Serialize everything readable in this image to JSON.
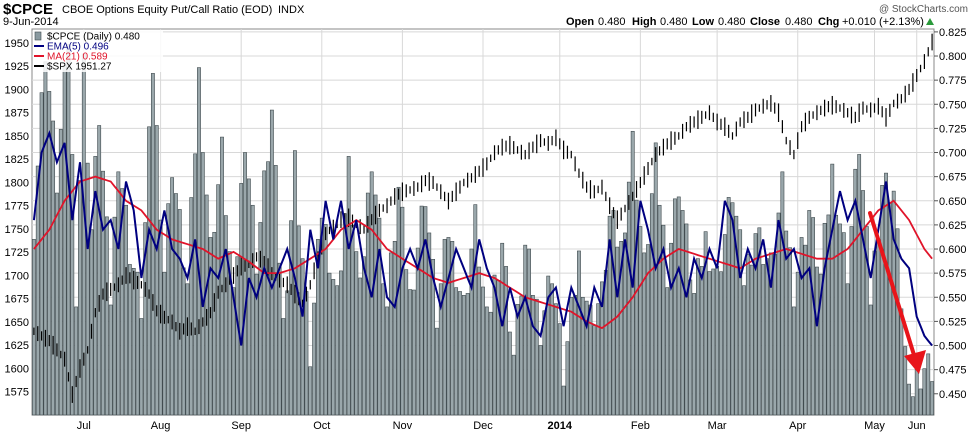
{
  "header": {
    "symbol": "$CPCE",
    "description": "CBOE Options Equity Put/Call Ratio (EOD)",
    "exchange": "INDX",
    "date": "9-Jun-2014",
    "open_label": "Open",
    "open": "0.480",
    "high_label": "High",
    "high": "0.480",
    "low_label": "Low",
    "low": "0.480",
    "close_label": "Close",
    "close": "0.480",
    "chg_label": "Chg",
    "chg": "+0.010 (+2.13%)",
    "watermark": "@ StockCharts.com"
  },
  "legend": [
    {
      "label": "$CPCE (Daily) 0.480",
      "color": "#8a9aa0"
    },
    {
      "label": "EMA(5) 0.496",
      "color": "#000080"
    },
    {
      "label": "MA(21) 0.589",
      "color": "#e0142a"
    },
    {
      "label": "$SPX 1951.27",
      "color": "#000000"
    }
  ],
  "colors": {
    "bars_fill": "#9aa7ab",
    "bars_stroke": "#3f4a4e",
    "ema": "#000080",
    "ma": "#e0142a",
    "spx": "#000000",
    "grid": "#d8d8d8",
    "arrow": "#e8141a"
  },
  "chart_data": {
    "type": "bar",
    "title": "CBOE Options Equity Put/Call Ratio (EOD)",
    "x_tick_labels": [
      "Jul",
      "Aug",
      "Sep",
      "Oct",
      "Nov",
      "Dec",
      "2014",
      "Feb",
      "Mar",
      "Apr",
      "May",
      "Jun"
    ],
    "bold_x_tick": "2014",
    "y_left": {
      "label": "$SPX",
      "min": 1550,
      "max": 1965,
      "ticks": [
        1575,
        1600,
        1625,
        1650,
        1675,
        1700,
        1725,
        1750,
        1775,
        1800,
        1825,
        1850,
        1875,
        1900,
        1925,
        1950
      ]
    },
    "y_right": {
      "label": "$CPCE",
      "min": 0.428,
      "max": 0.828,
      "ticks": [
        0.45,
        0.475,
        0.5,
        0.525,
        0.55,
        0.575,
        0.6,
        0.625,
        0.65,
        0.675,
        0.7,
        0.725,
        0.75,
        0.775,
        0.8,
        0.825
      ]
    },
    "grid": true,
    "legend_position": "top-left",
    "cpce_bar_anchors": [
      [
        0,
        0.63
      ],
      [
        3,
        0.81
      ],
      [
        6,
        0.67
      ],
      [
        9,
        0.82
      ],
      [
        11,
        0.56
      ],
      [
        13,
        0.79
      ],
      [
        15,
        0.62
      ],
      [
        17,
        0.74
      ],
      [
        20,
        0.55
      ],
      [
        22,
        0.7
      ],
      [
        25,
        0.6
      ],
      [
        28,
        0.54
      ],
      [
        31,
        0.79
      ],
      [
        34,
        0.58
      ],
      [
        36,
        0.69
      ],
      [
        40,
        0.56
      ],
      [
        43,
        0.78
      ],
      [
        46,
        0.6
      ],
      [
        49,
        0.7
      ],
      [
        52,
        0.54
      ],
      [
        55,
        0.72
      ],
      [
        58,
        0.59
      ],
      [
        62,
        0.74
      ],
      [
        65,
        0.52
      ],
      [
        68,
        0.69
      ],
      [
        72,
        0.49
      ],
      [
        75,
        0.64
      ],
      [
        79,
        0.55
      ],
      [
        82,
        0.68
      ],
      [
        85,
        0.55
      ],
      [
        88,
        0.7
      ],
      [
        92,
        0.54
      ],
      [
        95,
        0.66
      ],
      [
        98,
        0.55
      ],
      [
        102,
        0.66
      ],
      [
        105,
        0.53
      ],
      [
        108,
        0.62
      ],
      [
        112,
        0.54
      ],
      [
        115,
        0.63
      ],
      [
        118,
        0.52
      ],
      [
        122,
        0.61
      ],
      [
        125,
        0.49
      ],
      [
        128,
        0.6
      ],
      [
        132,
        0.52
      ],
      [
        135,
        0.58
      ],
      [
        138,
        0.47
      ],
      [
        142,
        0.59
      ],
      [
        145,
        0.53
      ],
      [
        148,
        0.55
      ],
      [
        150,
        0.63
      ],
      [
        153,
        0.6
      ],
      [
        156,
        0.71
      ],
      [
        159,
        0.58
      ],
      [
        162,
        0.69
      ],
      [
        165,
        0.58
      ],
      [
        168,
        0.67
      ],
      [
        172,
        0.55
      ],
      [
        175,
        0.61
      ],
      [
        178,
        0.57
      ],
      [
        182,
        0.66
      ],
      [
        185,
        0.57
      ],
      [
        188,
        0.62
      ],
      [
        192,
        0.58
      ],
      [
        195,
        0.66
      ],
      [
        198,
        0.56
      ],
      [
        202,
        0.64
      ],
      [
        205,
        0.57
      ],
      [
        208,
        0.68
      ],
      [
        212,
        0.58
      ],
      [
        215,
        0.71
      ],
      [
        218,
        0.55
      ],
      [
        221,
        0.67
      ],
      [
        224,
        0.66
      ],
      [
        226,
        0.55
      ],
      [
        228,
        0.44
      ],
      [
        230,
        0.47
      ],
      [
        232,
        0.48
      ]
    ],
    "ema5_anchors": [
      [
        0,
        0.63
      ],
      [
        2,
        0.7
      ],
      [
        4,
        0.72
      ],
      [
        6,
        0.69
      ],
      [
        8,
        0.71
      ],
      [
        10,
        0.63
      ],
      [
        12,
        0.69
      ],
      [
        14,
        0.6
      ],
      [
        16,
        0.66
      ],
      [
        18,
        0.62
      ],
      [
        20,
        0.63
      ],
      [
        22,
        0.6
      ],
      [
        24,
        0.67
      ],
      [
        26,
        0.64
      ],
      [
        28,
        0.57
      ],
      [
        30,
        0.62
      ],
      [
        32,
        0.6
      ],
      [
        34,
        0.64
      ],
      [
        36,
        0.6
      ],
      [
        38,
        0.59
      ],
      [
        40,
        0.57
      ],
      [
        42,
        0.61
      ],
      [
        44,
        0.54
      ],
      [
        46,
        0.58
      ],
      [
        48,
        0.57
      ],
      [
        50,
        0.6
      ],
      [
        52,
        0.55
      ],
      [
        54,
        0.5
      ],
      [
        56,
        0.57
      ],
      [
        58,
        0.55
      ],
      [
        60,
        0.58
      ],
      [
        62,
        0.56
      ],
      [
        64,
        0.58
      ],
      [
        66,
        0.6
      ],
      [
        68,
        0.57
      ],
      [
        70,
        0.53
      ],
      [
        72,
        0.62
      ],
      [
        74,
        0.58
      ],
      [
        76,
        0.65
      ],
      [
        78,
        0.61
      ],
      [
        80,
        0.65
      ],
      [
        82,
        0.6
      ],
      [
        84,
        0.63
      ],
      [
        86,
        0.58
      ],
      [
        88,
        0.55
      ],
      [
        90,
        0.6
      ],
      [
        92,
        0.55
      ],
      [
        94,
        0.54
      ],
      [
        96,
        0.58
      ],
      [
        98,
        0.6
      ],
      [
        100,
        0.58
      ],
      [
        102,
        0.61
      ],
      [
        104,
        0.57
      ],
      [
        106,
        0.54
      ],
      [
        108,
        0.57
      ],
      [
        110,
        0.6
      ],
      [
        112,
        0.58
      ],
      [
        114,
        0.56
      ],
      [
        116,
        0.61
      ],
      [
        118,
        0.58
      ],
      [
        120,
        0.56
      ],
      [
        122,
        0.52
      ],
      [
        124,
        0.56
      ],
      [
        126,
        0.53
      ],
      [
        128,
        0.55
      ],
      [
        130,
        0.52
      ],
      [
        132,
        0.51
      ],
      [
        134,
        0.55
      ],
      [
        136,
        0.56
      ],
      [
        138,
        0.52
      ],
      [
        140,
        0.56
      ],
      [
        142,
        0.54
      ],
      [
        144,
        0.52
      ],
      [
        146,
        0.56
      ],
      [
        148,
        0.54
      ],
      [
        150,
        0.61
      ],
      [
        152,
        0.55
      ],
      [
        154,
        0.61
      ],
      [
        156,
        0.56
      ],
      [
        158,
        0.65
      ],
      [
        160,
        0.62
      ],
      [
        162,
        0.58
      ],
      [
        164,
        0.6
      ],
      [
        166,
        0.56
      ],
      [
        168,
        0.58
      ],
      [
        170,
        0.55
      ],
      [
        172,
        0.59
      ],
      [
        174,
        0.57
      ],
      [
        176,
        0.6
      ],
      [
        178,
        0.58
      ],
      [
        180,
        0.65
      ],
      [
        182,
        0.63
      ],
      [
        184,
        0.57
      ],
      [
        186,
        0.6
      ],
      [
        188,
        0.58
      ],
      [
        190,
        0.61
      ],
      [
        192,
        0.56
      ],
      [
        194,
        0.63
      ],
      [
        196,
        0.59
      ],
      [
        198,
        0.6
      ],
      [
        200,
        0.57
      ],
      [
        202,
        0.58
      ],
      [
        204,
        0.52
      ],
      [
        206,
        0.58
      ],
      [
        208,
        0.62
      ],
      [
        210,
        0.66
      ],
      [
        212,
        0.63
      ],
      [
        214,
        0.65
      ],
      [
        216,
        0.61
      ],
      [
        218,
        0.57
      ],
      [
        220,
        0.62
      ],
      [
        222,
        0.67
      ],
      [
        224,
        0.61
      ],
      [
        226,
        0.59
      ],
      [
        228,
        0.58
      ],
      [
        230,
        0.53
      ],
      [
        232,
        0.51
      ],
      [
        234,
        0.5
      ]
    ],
    "ma21_anchors": [
      [
        0,
        0.6
      ],
      [
        4,
        0.62
      ],
      [
        8,
        0.65
      ],
      [
        12,
        0.67
      ],
      [
        16,
        0.675
      ],
      [
        20,
        0.67
      ],
      [
        24,
        0.65
      ],
      [
        28,
        0.64
      ],
      [
        32,
        0.62
      ],
      [
        36,
        0.61
      ],
      [
        40,
        0.605
      ],
      [
        44,
        0.6
      ],
      [
        48,
        0.59
      ],
      [
        52,
        0.597
      ],
      [
        56,
        0.587
      ],
      [
        60,
        0.575
      ],
      [
        64,
        0.575
      ],
      [
        68,
        0.58
      ],
      [
        72,
        0.59
      ],
      [
        76,
        0.6
      ],
      [
        80,
        0.62
      ],
      [
        84,
        0.63
      ],
      [
        88,
        0.62
      ],
      [
        92,
        0.6
      ],
      [
        96,
        0.59
      ],
      [
        100,
        0.58
      ],
      [
        104,
        0.57
      ],
      [
        108,
        0.565
      ],
      [
        112,
        0.57
      ],
      [
        116,
        0.575
      ],
      [
        120,
        0.57
      ],
      [
        124,
        0.56
      ],
      [
        128,
        0.55
      ],
      [
        132,
        0.545
      ],
      [
        136,
        0.54
      ],
      [
        140,
        0.535
      ],
      [
        144,
        0.525
      ],
      [
        148,
        0.518
      ],
      [
        152,
        0.53
      ],
      [
        156,
        0.55
      ],
      [
        160,
        0.575
      ],
      [
        164,
        0.59
      ],
      [
        168,
        0.6
      ],
      [
        172,
        0.595
      ],
      [
        176,
        0.59
      ],
      [
        180,
        0.585
      ],
      [
        184,
        0.58
      ],
      [
        188,
        0.59
      ],
      [
        192,
        0.595
      ],
      [
        196,
        0.6
      ],
      [
        200,
        0.595
      ],
      [
        204,
        0.59
      ],
      [
        208,
        0.59
      ],
      [
        212,
        0.6
      ],
      [
        216,
        0.62
      ],
      [
        220,
        0.64
      ],
      [
        224,
        0.65
      ],
      [
        228,
        0.63
      ],
      [
        232,
        0.6
      ],
      [
        234,
        0.59
      ]
    ],
    "spx_anchors": [
      [
        0,
        1640
      ],
      [
        4,
        1630
      ],
      [
        8,
        1610
      ],
      [
        10,
        1572
      ],
      [
        12,
        1600
      ],
      [
        14,
        1620
      ],
      [
        16,
        1660
      ],
      [
        18,
        1680
      ],
      [
        20,
        1685
      ],
      [
        22,
        1690
      ],
      [
        24,
        1700
      ],
      [
        26,
        1695
      ],
      [
        28,
        1690
      ],
      [
        30,
        1680
      ],
      [
        32,
        1662
      ],
      [
        34,
        1655
      ],
      [
        36,
        1650
      ],
      [
        38,
        1640
      ],
      [
        40,
        1645
      ],
      [
        42,
        1640
      ],
      [
        44,
        1650
      ],
      [
        46,
        1660
      ],
      [
        48,
        1682
      ],
      [
        50,
        1690
      ],
      [
        52,
        1700
      ],
      [
        54,
        1710
      ],
      [
        56,
        1712
      ],
      [
        58,
        1720
      ],
      [
        60,
        1715
      ],
      [
        62,
        1702
      ],
      [
        64,
        1695
      ],
      [
        66,
        1690
      ],
      [
        68,
        1680
      ],
      [
        70,
        1670
      ],
      [
        72,
        1690
      ],
      [
        74,
        1720
      ],
      [
        76,
        1745
      ],
      [
        78,
        1752
      ],
      [
        80,
        1760
      ],
      [
        82,
        1762
      ],
      [
        84,
        1755
      ],
      [
        86,
        1750
      ],
      [
        88,
        1760
      ],
      [
        90,
        1770
      ],
      [
        92,
        1775
      ],
      [
        94,
        1785
      ],
      [
        96,
        1790
      ],
      [
        98,
        1792
      ],
      [
        100,
        1795
      ],
      [
        102,
        1802
      ],
      [
        104,
        1800
      ],
      [
        106,
        1790
      ],
      [
        108,
        1780
      ],
      [
        110,
        1790
      ],
      [
        112,
        1800
      ],
      [
        114,
        1805
      ],
      [
        116,
        1812
      ],
      [
        118,
        1820
      ],
      [
        120,
        1832
      ],
      [
        122,
        1838
      ],
      [
        124,
        1840
      ],
      [
        126,
        1835
      ],
      [
        128,
        1830
      ],
      [
        130,
        1838
      ],
      [
        132,
        1845
      ],
      [
        134,
        1842
      ],
      [
        136,
        1848
      ],
      [
        138,
        1835
      ],
      [
        140,
        1830
      ],
      [
        142,
        1810
      ],
      [
        144,
        1795
      ],
      [
        146,
        1790
      ],
      [
        148,
        1795
      ],
      [
        150,
        1775
      ],
      [
        152,
        1760
      ],
      [
        154,
        1772
      ],
      [
        156,
        1785
      ],
      [
        158,
        1800
      ],
      [
        160,
        1815
      ],
      [
        162,
        1830
      ],
      [
        164,
        1838
      ],
      [
        166,
        1845
      ],
      [
        168,
        1850
      ],
      [
        170,
        1860
      ],
      [
        172,
        1865
      ],
      [
        174,
        1870
      ],
      [
        176,
        1875
      ],
      [
        178,
        1865
      ],
      [
        180,
        1860
      ],
      [
        182,
        1850
      ],
      [
        184,
        1865
      ],
      [
        186,
        1870
      ],
      [
        188,
        1878
      ],
      [
        190,
        1882
      ],
      [
        192,
        1885
      ],
      [
        194,
        1875
      ],
      [
        196,
        1845
      ],
      [
        198,
        1830
      ],
      [
        200,
        1860
      ],
      [
        202,
        1870
      ],
      [
        204,
        1875
      ],
      [
        206,
        1880
      ],
      [
        208,
        1883
      ],
      [
        210,
        1880
      ],
      [
        212,
        1875
      ],
      [
        214,
        1870
      ],
      [
        216,
        1880
      ],
      [
        218,
        1878
      ],
      [
        220,
        1882
      ],
      [
        222,
        1870
      ],
      [
        224,
        1885
      ],
      [
        226,
        1890
      ],
      [
        228,
        1900
      ],
      [
        230,
        1915
      ],
      [
        232,
        1930
      ],
      [
        234,
        1951
      ]
    ]
  }
}
